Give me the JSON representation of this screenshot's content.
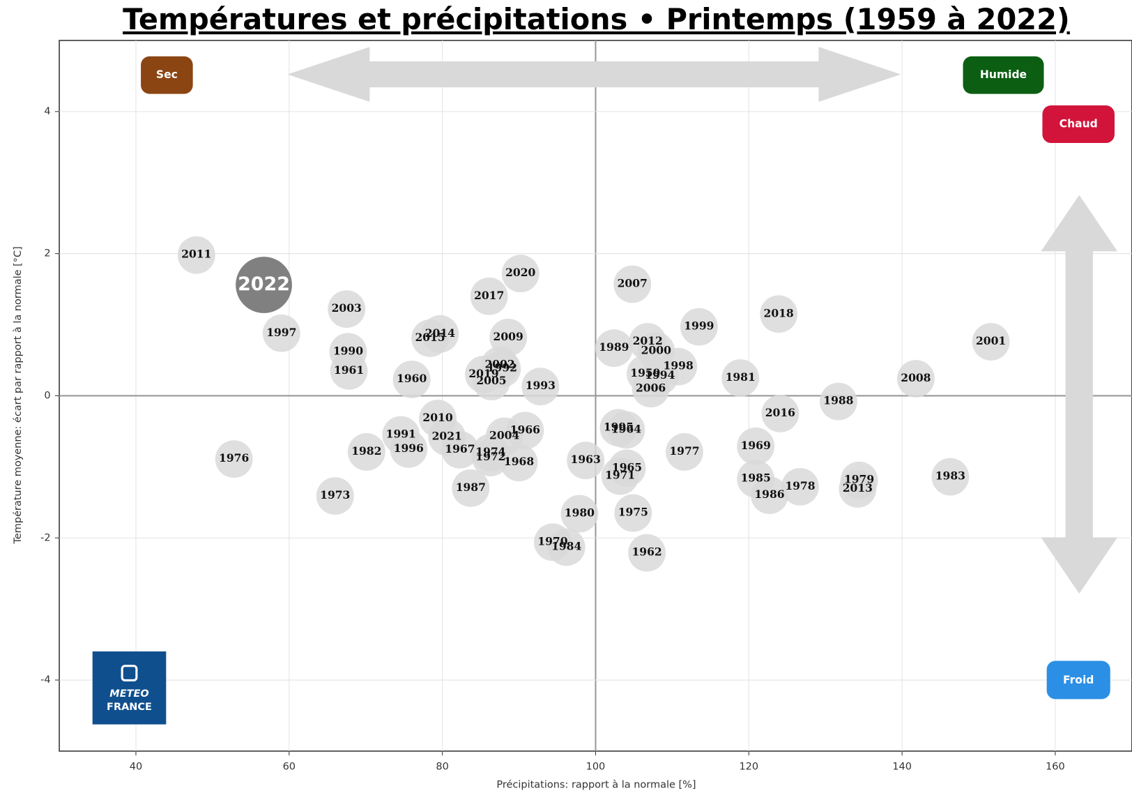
{
  "chart_data": {
    "type": "scatter",
    "title": "Températures et précipitations • Printemps (1959 à 2022)",
    "xlabel": "Précipitations: rapport à la normale [%]",
    "ylabel": "Température moyenne: écart par rapport à la normale [°C]",
    "xlim": [
      30,
      170
    ],
    "ylim": [
      -5,
      5
    ],
    "xticks": [
      40,
      60,
      80,
      100,
      120,
      140,
      160
    ],
    "yticks": [
      -4,
      -2,
      0,
      2,
      4
    ],
    "grid": true,
    "series": [
      {
        "color": "#d9d9d9",
        "labels": [
          "2011",
          "1997",
          "2003",
          "1990",
          "1961",
          "1960",
          "2015",
          "2014",
          "2009",
          "2017",
          "2020",
          "2007",
          "2002",
          "1992",
          "2019",
          "2005",
          "1993",
          "1989",
          "2012",
          "2000",
          "1999",
          "1998",
          "1959",
          "1994",
          "2006",
          "1981",
          "2018",
          "2008",
          "2001",
          "1988",
          "2016",
          "2010",
          "1991",
          "2021",
          "2004",
          "1966",
          "1996",
          "1982",
          "1967",
          "1974",
          "1972",
          "1968",
          "1976",
          "1963",
          "1995",
          "1964",
          "1965",
          "1971",
          "1977",
          "1969",
          "1985",
          "1986",
          "1978",
          "1979",
          "2013",
          "1983",
          "1973",
          "1987",
          "1980",
          "1975",
          "1970",
          "1984",
          "1962"
        ],
        "x": [
          47.9,
          59.0,
          67.5,
          67.7,
          67.8,
          76.0,
          78.4,
          79.7,
          88.6,
          86.1,
          90.2,
          104.8,
          87.5,
          87.8,
          85.4,
          86.4,
          92.8,
          102.4,
          106.8,
          107.9,
          113.5,
          110.8,
          106.5,
          108.4,
          107.2,
          118.9,
          123.9,
          141.8,
          151.6,
          131.7,
          124.1,
          79.4,
          74.6,
          80.6,
          88.1,
          90.8,
          75.6,
          70.1,
          82.3,
          86.3,
          86.3,
          90.0,
          52.8,
          98.7,
          103.0,
          104.0,
          104.1,
          103.2,
          111.6,
          120.9,
          120.9,
          122.7,
          126.7,
          134.4,
          134.2,
          146.3,
          66.0,
          83.7,
          97.9,
          104.9,
          94.4,
          96.2,
          106.7
        ],
        "values": [
          1.98,
          0.88,
          1.22,
          0.62,
          0.35,
          0.23,
          0.81,
          0.87,
          0.82,
          1.4,
          1.72,
          1.57,
          0.43,
          0.38,
          0.3,
          0.2,
          0.13,
          0.67,
          0.76,
          0.63,
          0.97,
          0.41,
          0.31,
          0.28,
          0.1,
          0.25,
          1.15,
          0.24,
          0.76,
          -0.08,
          -0.25,
          -0.32,
          -0.55,
          -0.58,
          -0.57,
          -0.49,
          -0.75,
          -0.79,
          -0.76,
          -0.8,
          -0.87,
          -0.94,
          -0.89,
          -0.91,
          -0.45,
          -0.48,
          -1.02,
          -1.13,
          -0.79,
          -0.71,
          -1.17,
          -1.4,
          -1.28,
          -1.19,
          -1.31,
          -1.14,
          -1.41,
          -1.3,
          -1.66,
          -1.65,
          -2.06,
          -2.13,
          -2.21
        ]
      },
      {
        "color": "#808080",
        "labels": [
          "2022"
        ],
        "x": [
          56.7
        ],
        "values": [
          1.56
        ]
      }
    ],
    "annotations": {
      "sec": "Sec",
      "humide": "Humide",
      "chaud": "Chaud",
      "froid": "Froid"
    },
    "logo": [
      "METEO",
      "FRANCE"
    ]
  }
}
